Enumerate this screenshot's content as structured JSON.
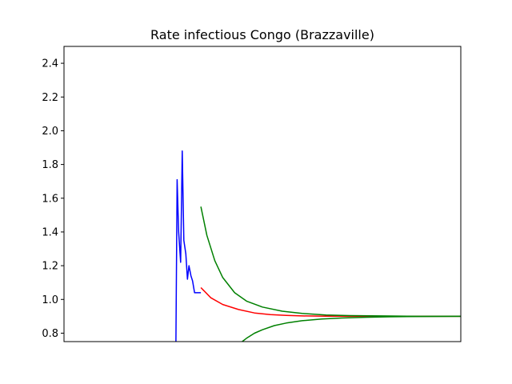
{
  "chart_data": {
    "type": "line",
    "title": "Rate infectious Congo (Brazzaville)",
    "xlabel": "",
    "ylabel": "",
    "xlim": [
      0,
      100
    ],
    "ylim": [
      0.75,
      2.5
    ],
    "yticks": [
      0.8,
      1.0,
      1.2,
      1.4,
      1.6,
      1.8,
      2.0,
      2.2,
      2.4
    ],
    "ytick_labels": [
      "0.8",
      "1.0",
      "1.2",
      "1.4",
      "1.6",
      "1.8",
      "2.0",
      "2.2",
      "2.4"
    ],
    "xtick_labels": [],
    "grid": false,
    "legend": "none",
    "series": [
      {
        "color": "#0000ff",
        "x": [
          28.2,
          28.5,
          28.9,
          29.4,
          29.8,
          30.2,
          30.7,
          31.1,
          31.5,
          32.0,
          32.4,
          32.9,
          33.3,
          33.7,
          34.1,
          34.5
        ],
        "y": [
          0.75,
          1.71,
          1.4,
          1.22,
          1.88,
          1.35,
          1.27,
          1.12,
          1.2,
          1.14,
          1.11,
          1.04,
          1.04,
          1.04,
          1.04,
          1.04
        ]
      },
      {
        "color": "#ff0000",
        "x": [
          34.5,
          37,
          40,
          44,
          48,
          52,
          56,
          60,
          66,
          72,
          80,
          90,
          100
        ],
        "y": [
          1.07,
          1.01,
          0.97,
          0.94,
          0.92,
          0.91,
          0.905,
          0.902,
          0.901,
          0.9,
          0.9,
          0.9,
          0.9
        ]
      },
      {
        "color": "#008000",
        "x": [
          34.5,
          36,
          38,
          40,
          43,
          46,
          50,
          55,
          60,
          66,
          72,
          80,
          90,
          100
        ],
        "y": [
          1.55,
          1.38,
          1.23,
          1.13,
          1.04,
          0.99,
          0.955,
          0.93,
          0.917,
          0.908,
          0.904,
          0.902,
          0.9,
          0.9
        ]
      },
      {
        "color": "#008000",
        "x": [
          44.9,
          46,
          48,
          50,
          53,
          56,
          60,
          65,
          70,
          76,
          82,
          90,
          100
        ],
        "y": [
          0.75,
          0.77,
          0.8,
          0.82,
          0.845,
          0.86,
          0.874,
          0.884,
          0.89,
          0.894,
          0.897,
          0.899,
          0.9
        ]
      }
    ]
  }
}
